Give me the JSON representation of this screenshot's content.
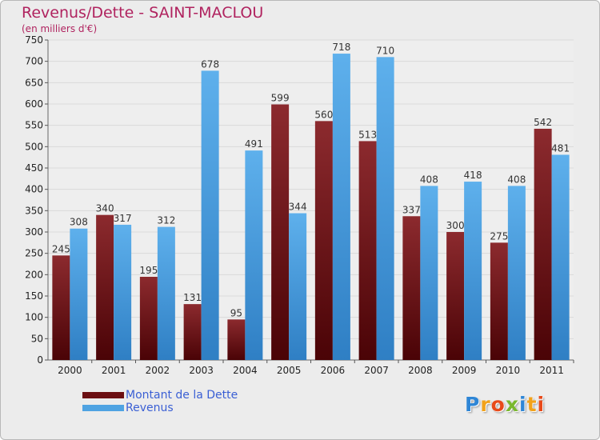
{
  "header": {
    "title": "Revenus/Dette - SAINT-MACLOU",
    "subtitle": "(en milliers d'€)"
  },
  "chart_data": {
    "type": "bar",
    "title": "Revenus/Dette - SAINT-MACLOU",
    "subtitle": "(en milliers d'€)",
    "xlabel": "",
    "ylabel": "",
    "categories": [
      "2000",
      "2001",
      "2002",
      "2003",
      "2004",
      "2005",
      "2006",
      "2007",
      "2008",
      "2009",
      "2010",
      "2011"
    ],
    "series": [
      {
        "name": "Montant de la Dette",
        "color": "#7a1a1e",
        "values": [
          245,
          340,
          195,
          131,
          95,
          599,
          560,
          513,
          337,
          300,
          275,
          542
        ]
      },
      {
        "name": "Revenus",
        "color": "#4fa3e2",
        "values": [
          308,
          317,
          312,
          678,
          491,
          344,
          718,
          710,
          408,
          418,
          408,
          481
        ]
      }
    ],
    "ylim": [
      0,
      750
    ],
    "yticks": [
      0,
      50,
      100,
      150,
      200,
      250,
      300,
      350,
      400,
      450,
      500,
      550,
      600,
      650,
      700,
      750
    ],
    "grid": true,
    "legend_position": "bottom-left"
  },
  "legend": {
    "items": [
      {
        "label": "Montant de la Dette",
        "color": "#6b0f12"
      },
      {
        "label": "Revenus",
        "color": "#4fa3e2"
      }
    ]
  },
  "logo": {
    "text": "Proxiti",
    "letters": [
      "P",
      "r",
      "o",
      "x",
      "i",
      "t",
      "i"
    ],
    "colors": [
      "#2e86d6",
      "#f2a21a",
      "#e84a1a",
      "#7ab82e",
      "#2e86d6",
      "#f2a21a",
      "#e84a1a"
    ]
  }
}
